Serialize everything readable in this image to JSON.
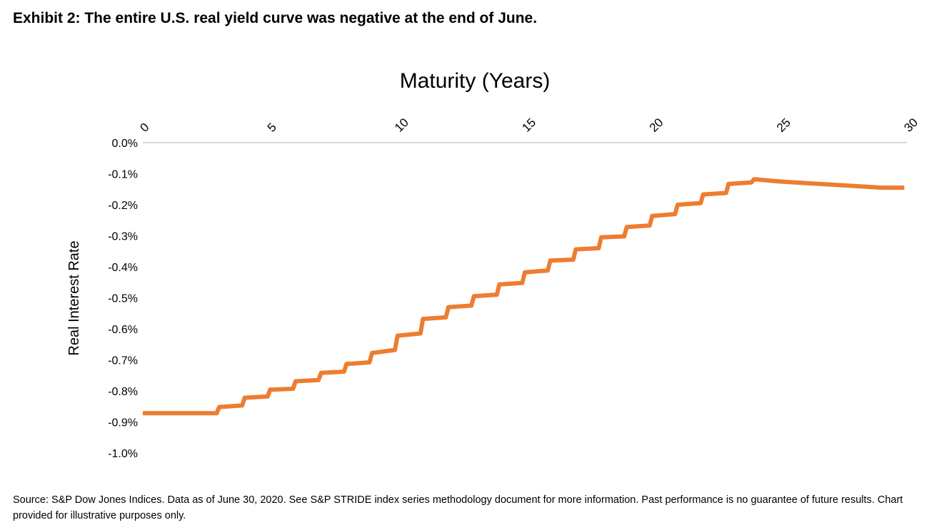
{
  "title": "Exhibit 2:  The entire U.S. real yield curve was negative at the end of June.",
  "source": "Source:  S&P Dow Jones Indices.  Data as of June 30, 2020.  See S&P STRIDE index series methodology document for more information.  Past performance is no guarantee of future results. Chart provided for illustrative purposes only.",
  "colors": {
    "line": "#ED7D31",
    "axis": "#D9D9D9",
    "text": "#000000"
  },
  "chart_data": {
    "type": "line",
    "title": "",
    "xlabel": "Maturity (Years)",
    "ylabel": "Real Interest Rate",
    "xlim": [
      0,
      30
    ],
    "ylim": [
      -1.0,
      0.0
    ],
    "x_ticks": [
      0,
      5,
      10,
      15,
      20,
      25,
      30
    ],
    "x_tick_labels": [
      "0",
      "5",
      "10",
      "15",
      "20",
      "25",
      "30"
    ],
    "y_ticks": [
      0.0,
      -0.1,
      -0.2,
      -0.3,
      -0.4,
      -0.5,
      -0.6,
      -0.7,
      -0.8,
      -0.9,
      -1.0
    ],
    "y_tick_labels": [
      "0.0%",
      "-0.1%",
      "-0.2%",
      "-0.3%",
      "-0.4%",
      "-0.5%",
      "-0.6%",
      "-0.7%",
      "-0.8%",
      "-0.9%",
      "-1.0%"
    ],
    "x_axis_position": "top",
    "grid": false,
    "legend": "none",
    "series": [
      {
        "x": [
          0,
          2.9,
          3.0,
          3.9,
          4.0,
          4.9,
          5.0,
          5.9,
          6.0,
          6.9,
          7.0,
          7.9,
          8.0,
          8.9,
          9.0,
          9.9,
          10.0,
          10.9,
          11.0,
          11.9,
          12.0,
          12.9,
          13.0,
          13.9,
          14.0,
          14.9,
          15.0,
          15.9,
          16.0,
          16.9,
          17.0,
          17.9,
          18.0,
          18.9,
          19.0,
          19.9,
          20.0,
          20.9,
          21.0,
          21.9,
          22.0,
          22.9,
          23.0,
          23.9,
          24.0,
          25.0,
          26.0,
          27.0,
          28.0,
          29.0,
          29.9
        ],
        "y": [
          -0.872,
          -0.872,
          -0.852,
          -0.847,
          -0.822,
          -0.818,
          -0.796,
          -0.793,
          -0.769,
          -0.765,
          -0.742,
          -0.738,
          -0.713,
          -0.708,
          -0.678,
          -0.668,
          -0.622,
          -0.615,
          -0.568,
          -0.563,
          -0.53,
          -0.525,
          -0.495,
          -0.49,
          -0.457,
          -0.452,
          -0.418,
          -0.412,
          -0.38,
          -0.377,
          -0.344,
          -0.34,
          -0.305,
          -0.302,
          -0.272,
          -0.267,
          -0.236,
          -0.23,
          -0.2,
          -0.195,
          -0.167,
          -0.162,
          -0.133,
          -0.128,
          -0.118,
          -0.125,
          -0.13,
          -0.135,
          -0.14,
          -0.145,
          -0.145
        ]
      }
    ]
  }
}
